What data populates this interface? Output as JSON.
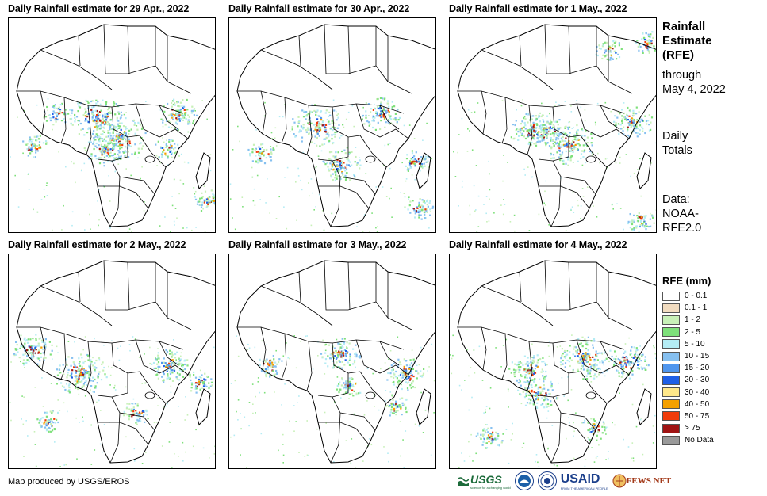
{
  "panels": [
    {
      "title": "Daily Rainfall estimate for 29 Apr., 2022",
      "date": "29 Apr., 2022"
    },
    {
      "title": "Daily Rainfall estimate for 30 Apr., 2022",
      "date": "30 Apr., 2022"
    },
    {
      "title": "Daily Rainfall estimate for 1 May., 2022",
      "date": "1 May., 2022"
    },
    {
      "title": "Daily Rainfall estimate for 2 May., 2022",
      "date": "2 May., 2022"
    },
    {
      "title": "Daily Rainfall estimate for 3 May., 2022",
      "date": "3 May., 2022"
    },
    {
      "title": "Daily Rainfall estimate for 4 May., 2022",
      "date": "4 May., 2022"
    }
  ],
  "side": {
    "title_line1": "Rainfall",
    "title_line2": "Estimate",
    "title_line3": "(RFE)",
    "through": "through",
    "through_date": "May 4, 2022",
    "totals_line1": "Daily",
    "totals_line2": "Totals",
    "data_line1": "Data:",
    "data_line2": "NOAA-",
    "data_line3": "RFE2.0"
  },
  "legend": {
    "title": "RFE (mm)",
    "items": [
      {
        "label": "0 - 0.1",
        "color": "#ffffff"
      },
      {
        "label": "0.1 - 1",
        "color": "#f2dcc0"
      },
      {
        "label": "1 - 2",
        "color": "#c8f0b8"
      },
      {
        "label": "2 - 5",
        "color": "#7ee07a"
      },
      {
        "label": "5 - 10",
        "color": "#b4ecf4"
      },
      {
        "label": "10 - 15",
        "color": "#86c0f0"
      },
      {
        "label": "15 - 20",
        "color": "#4f96ee"
      },
      {
        "label": "20 - 30",
        "color": "#1f5fe6"
      },
      {
        "label": "30 - 40",
        "color": "#ffe88a"
      },
      {
        "label": "40 - 50",
        "color": "#f5a000"
      },
      {
        "label": "50 - 75",
        "color": "#f03c0a"
      },
      {
        "label": "> 75",
        "color": "#a01414"
      },
      {
        "label": "No Data",
        "color": "#9a9a9a"
      }
    ]
  },
  "credit": "Map produced by USGS/EROS",
  "logos": {
    "usgs": "USGS",
    "usgs_tagline": "science for a changing world",
    "usaid": "USAID",
    "usaid_tagline": "FROM THE AMERICAN PEOPLE",
    "fews": "FEWS NET"
  }
}
